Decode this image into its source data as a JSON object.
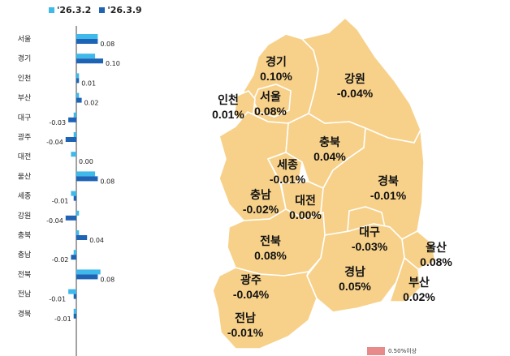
{
  "legend": [
    {
      "label": "'26.3.2",
      "color": "#3fb8ea"
    },
    {
      "label": "'26.3.9",
      "color": "#1f63b5"
    }
  ],
  "chart_data": {
    "type": "bar",
    "orientation": "horizontal",
    "categories": [
      "서울",
      "경기",
      "인천",
      "부산",
      "대구",
      "광주",
      "대전",
      "울산",
      "세종",
      "강원",
      "충북",
      "충남",
      "전북",
      "전남",
      "경북"
    ],
    "series": [
      {
        "name": "'26.3.2",
        "values": [
          0.08,
          0.07,
          0.01,
          0.01,
          -0.01,
          -0.01,
          -0.02,
          0.07,
          -0.02,
          0.01,
          0.01,
          -0.01,
          0.09,
          -0.03,
          -0.01
        ]
      },
      {
        "name": "'26.3.9",
        "values": [
          0.08,
          0.1,
          0.01,
          0.02,
          -0.03,
          -0.04,
          0.0,
          0.08,
          -0.01,
          -0.04,
          0.04,
          -0.02,
          0.08,
          -0.01,
          -0.01
        ]
      }
    ],
    "data_labels": [
      "0.08",
      "0.10",
      "0.01",
      "0.02",
      "-0.03",
      "-0.04",
      "0.00",
      "0.08",
      "-0.01",
      "-0.04",
      "0.04",
      "-0.02",
      "0.08",
      "-0.01",
      "-0.01"
    ],
    "colors": [
      "#3fb8ea",
      "#1f63b5"
    ]
  },
  "map": {
    "fill_color": "#f7d18a",
    "border_color": "#ffffff",
    "outline_color": "#6b5c3a",
    "regions": [
      {
        "name": "경기",
        "value": "0.10%"
      },
      {
        "name": "강원",
        "value": "-0.04%"
      },
      {
        "name": "인천",
        "value": "0.01%"
      },
      {
        "name": "서울",
        "value": "0.08%"
      },
      {
        "name": "충북",
        "value": "0.04%"
      },
      {
        "name": "세종",
        "value": "-0.01%"
      },
      {
        "name": "경북",
        "value": "-0.01%"
      },
      {
        "name": "충남",
        "value": "-0.02%"
      },
      {
        "name": "대전",
        "value": "0.00%"
      },
      {
        "name": "대구",
        "value": "-0.03%"
      },
      {
        "name": "울산",
        "value": "0.08%"
      },
      {
        "name": "전북",
        "value": "0.08%"
      },
      {
        "name": "경남",
        "value": "0.05%"
      },
      {
        "name": "광주",
        "value": "-0.04%"
      },
      {
        "name": "부산",
        "value": "0.02%"
      },
      {
        "name": "전남",
        "value": "-0.01%"
      }
    ]
  },
  "map_legend": {
    "label": "0.50%이상",
    "color": "#e88a8a"
  }
}
